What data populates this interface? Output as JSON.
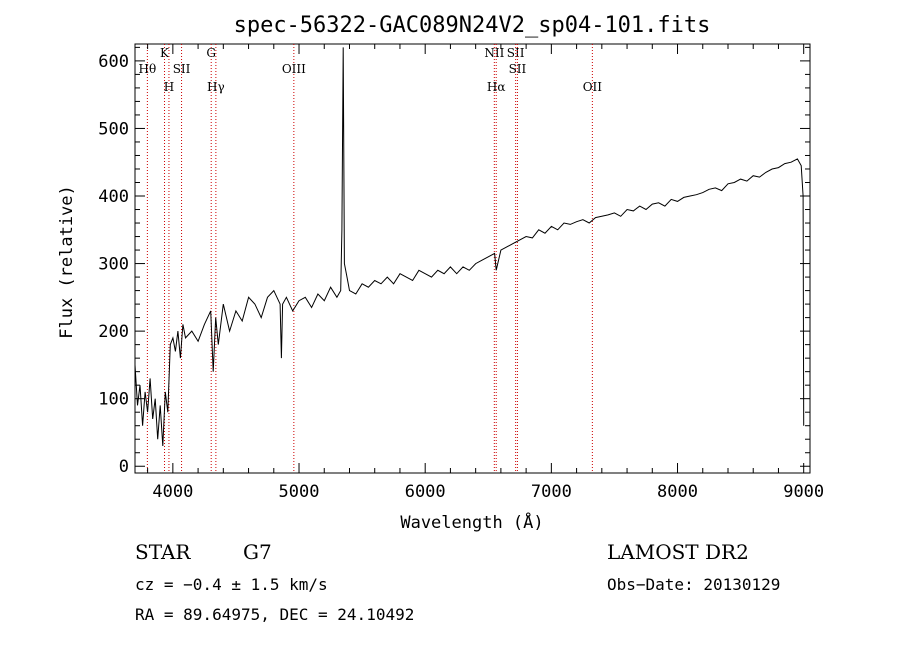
{
  "chart_data": {
    "type": "line",
    "title": "spec-56322-GAC089N24V2_sp04-101.fits",
    "xlabel": "Wavelength (Å)",
    "ylabel": "Flux (relative)",
    "xlim": [
      3700,
      9050
    ],
    "ylim": [
      -10,
      625
    ],
    "xticks": [
      4000,
      5000,
      6000,
      7000,
      8000,
      9000
    ],
    "yticks": [
      0,
      100,
      200,
      300,
      400,
      500,
      600
    ],
    "grid": false,
    "line_color": "#000000",
    "marker_color": "#cc0000",
    "series": [
      {
        "x": [
          3700,
          3720,
          3740,
          3760,
          3780,
          3800,
          3820,
          3840,
          3860,
          3880,
          3900,
          3920,
          3940,
          3960,
          3980,
          4000,
          4020,
          4040,
          4060,
          4080,
          4100,
          4150,
          4200,
          4250,
          4300,
          4320,
          4340,
          4360,
          4400,
          4450,
          4500,
          4550,
          4600,
          4650,
          4700,
          4750,
          4800,
          4850,
          4860,
          4870,
          4900,
          4950,
          5000,
          5050,
          5100,
          5150,
          5200,
          5250,
          5300,
          5330,
          5340,
          5350,
          5360,
          5380,
          5400,
          5450,
          5500,
          5550,
          5600,
          5650,
          5700,
          5750,
          5800,
          5850,
          5900,
          5950,
          6000,
          6050,
          6100,
          6150,
          6200,
          6250,
          6300,
          6350,
          6400,
          6450,
          6500,
          6550,
          6563,
          6600,
          6650,
          6700,
          6750,
          6800,
          6850,
          6900,
          6950,
          7000,
          7050,
          7100,
          7150,
          7200,
          7250,
          7300,
          7350,
          7400,
          7450,
          7500,
          7550,
          7600,
          7650,
          7700,
          7750,
          7800,
          7850,
          7900,
          7950,
          8000,
          8050,
          8100,
          8150,
          8200,
          8250,
          8300,
          8350,
          8400,
          8450,
          8500,
          8550,
          8600,
          8650,
          8700,
          8750,
          8800,
          8850,
          8900,
          8950,
          8980,
          8995,
          9000
        ],
        "y": [
          150,
          90,
          120,
          60,
          110,
          80,
          130,
          70,
          100,
          40,
          90,
          30,
          110,
          80,
          180,
          190,
          170,
          200,
          160,
          210,
          190,
          200,
          185,
          210,
          230,
          140,
          220,
          180,
          240,
          200,
          230,
          215,
          250,
          240,
          220,
          250,
          260,
          240,
          160,
          240,
          250,
          230,
          245,
          250,
          235,
          255,
          245,
          265,
          250,
          260,
          350,
          620,
          300,
          280,
          260,
          255,
          270,
          265,
          275,
          270,
          280,
          270,
          285,
          280,
          275,
          290,
          285,
          280,
          290,
          285,
          295,
          285,
          295,
          290,
          300,
          305,
          310,
          315,
          290,
          320,
          325,
          330,
          335,
          340,
          338,
          350,
          345,
          355,
          350,
          360,
          358,
          362,
          365,
          360,
          368,
          370,
          372,
          375,
          370,
          380,
          378,
          385,
          380,
          388,
          390,
          385,
          395,
          392,
          398,
          400,
          402,
          405,
          410,
          412,
          408,
          418,
          420,
          425,
          422,
          430,
          428,
          435,
          440,
          442,
          448,
          450,
          455,
          445,
          400,
          60
        ]
      }
    ],
    "lines": [
      {
        "name": "Hθ",
        "wavelength": 3798
      },
      {
        "name": "K",
        "wavelength": 3934
      },
      {
        "name": "H",
        "wavelength": 3969
      },
      {
        "name": "SII",
        "wavelength": 4069
      },
      {
        "name": "G",
        "wavelength": 4304
      },
      {
        "name": "Hγ",
        "wavelength": 4341
      },
      {
        "name": "OIII",
        "wavelength": 4959
      },
      {
        "name": "NII",
        "wavelength": 6548
      },
      {
        "name": "Hα",
        "wavelength": 6563
      },
      {
        "name": "SII",
        "wavelength": 6717
      },
      {
        "name": "SII",
        "wavelength": 6731
      },
      {
        "name": "OII",
        "wavelength": 7325
      }
    ]
  },
  "info": {
    "class": "STAR",
    "subclass": "G7",
    "cz": "cz = −0.4 ± 1.5 km/s",
    "coords": "RA =  89.64975, DEC =  24.10492",
    "survey": "LAMOST DR2",
    "obs_date": "Obs−Date: 20130129"
  }
}
